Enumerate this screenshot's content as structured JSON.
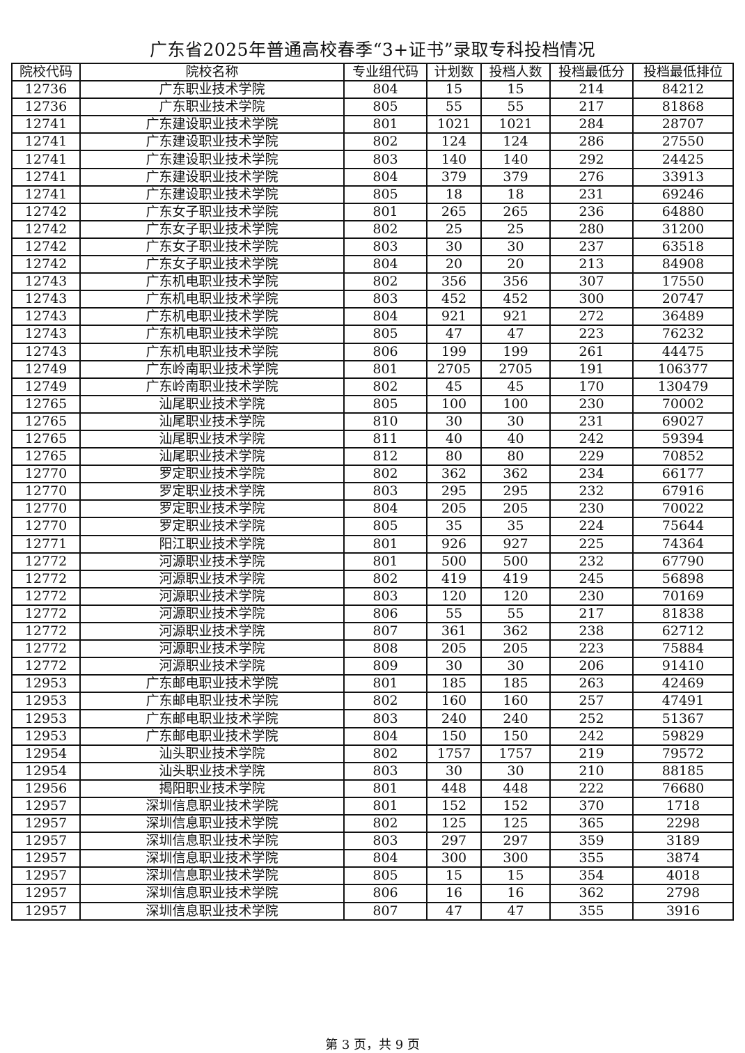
{
  "title": "广东省2025年普通高校春季“3+证书”录取专科投档情况",
  "columns": [
    "院校代码",
    "院校名称",
    "专业组代码",
    "计划数",
    "投档人数",
    "投档最低分",
    "投档最低排位"
  ],
  "rows": [
    [
      "12736",
      "广东职业技术学院",
      "804",
      "15",
      "15",
      "214",
      "84212"
    ],
    [
      "12736",
      "广东职业技术学院",
      "805",
      "55",
      "55",
      "217",
      "81868"
    ],
    [
      "12741",
      "广东建设职业技术学院",
      "801",
      "1021",
      "1021",
      "284",
      "28707"
    ],
    [
      "12741",
      "广东建设职业技术学院",
      "802",
      "124",
      "124",
      "286",
      "27550"
    ],
    [
      "12741",
      "广东建设职业技术学院",
      "803",
      "140",
      "140",
      "292",
      "24425"
    ],
    [
      "12741",
      "广东建设职业技术学院",
      "804",
      "379",
      "379",
      "276",
      "33913"
    ],
    [
      "12741",
      "广东建设职业技术学院",
      "805",
      "18",
      "18",
      "231",
      "69246"
    ],
    [
      "12742",
      "广东女子职业技术学院",
      "801",
      "265",
      "265",
      "236",
      "64880"
    ],
    [
      "12742",
      "广东女子职业技术学院",
      "802",
      "25",
      "25",
      "280",
      "31200"
    ],
    [
      "12742",
      "广东女子职业技术学院",
      "803",
      "30",
      "30",
      "237",
      "63518"
    ],
    [
      "12742",
      "广东女子职业技术学院",
      "804",
      "20",
      "20",
      "213",
      "84908"
    ],
    [
      "12743",
      "广东机电职业技术学院",
      "802",
      "356",
      "356",
      "307",
      "17550"
    ],
    [
      "12743",
      "广东机电职业技术学院",
      "803",
      "452",
      "452",
      "300",
      "20747"
    ],
    [
      "12743",
      "广东机电职业技术学院",
      "804",
      "921",
      "921",
      "272",
      "36489"
    ],
    [
      "12743",
      "广东机电职业技术学院",
      "805",
      "47",
      "47",
      "223",
      "76232"
    ],
    [
      "12743",
      "广东机电职业技术学院",
      "806",
      "199",
      "199",
      "261",
      "44475"
    ],
    [
      "12749",
      "广东岭南职业技术学院",
      "801",
      "2705",
      "2705",
      "191",
      "106377"
    ],
    [
      "12749",
      "广东岭南职业技术学院",
      "802",
      "45",
      "45",
      "170",
      "130479"
    ],
    [
      "12765",
      "汕尾职业技术学院",
      "805",
      "100",
      "100",
      "230",
      "70002"
    ],
    [
      "12765",
      "汕尾职业技术学院",
      "810",
      "30",
      "30",
      "231",
      "69027"
    ],
    [
      "12765",
      "汕尾职业技术学院",
      "811",
      "40",
      "40",
      "242",
      "59394"
    ],
    [
      "12765",
      "汕尾职业技术学院",
      "812",
      "80",
      "80",
      "229",
      "70852"
    ],
    [
      "12770",
      "罗定职业技术学院",
      "802",
      "362",
      "362",
      "234",
      "66177"
    ],
    [
      "12770",
      "罗定职业技术学院",
      "803",
      "295",
      "295",
      "232",
      "67916"
    ],
    [
      "12770",
      "罗定职业技术学院",
      "804",
      "205",
      "205",
      "230",
      "70022"
    ],
    [
      "12770",
      "罗定职业技术学院",
      "805",
      "35",
      "35",
      "224",
      "75644"
    ],
    [
      "12771",
      "阳江职业技术学院",
      "801",
      "926",
      "927",
      "225",
      "74364"
    ],
    [
      "12772",
      "河源职业技术学院",
      "801",
      "500",
      "500",
      "232",
      "67790"
    ],
    [
      "12772",
      "河源职业技术学院",
      "802",
      "419",
      "419",
      "245",
      "56898"
    ],
    [
      "12772",
      "河源职业技术学院",
      "803",
      "120",
      "120",
      "230",
      "70169"
    ],
    [
      "12772",
      "河源职业技术学院",
      "806",
      "55",
      "55",
      "217",
      "81838"
    ],
    [
      "12772",
      "河源职业技术学院",
      "807",
      "361",
      "362",
      "238",
      "62712"
    ],
    [
      "12772",
      "河源职业技术学院",
      "808",
      "205",
      "205",
      "223",
      "75884"
    ],
    [
      "12772",
      "河源职业技术学院",
      "809",
      "30",
      "30",
      "206",
      "91410"
    ],
    [
      "12953",
      "广东邮电职业技术学院",
      "801",
      "185",
      "185",
      "263",
      "42469"
    ],
    [
      "12953",
      "广东邮电职业技术学院",
      "802",
      "160",
      "160",
      "257",
      "47491"
    ],
    [
      "12953",
      "广东邮电职业技术学院",
      "803",
      "240",
      "240",
      "252",
      "51367"
    ],
    [
      "12953",
      "广东邮电职业技术学院",
      "804",
      "150",
      "150",
      "242",
      "59829"
    ],
    [
      "12954",
      "汕头职业技术学院",
      "802",
      "1757",
      "1757",
      "219",
      "79572"
    ],
    [
      "12954",
      "汕头职业技术学院",
      "803",
      "30",
      "30",
      "210",
      "88185"
    ],
    [
      "12956",
      "揭阳职业技术学院",
      "801",
      "448",
      "448",
      "222",
      "76680"
    ],
    [
      "12957",
      "深圳信息职业技术学院",
      "801",
      "152",
      "152",
      "370",
      "1718"
    ],
    [
      "12957",
      "深圳信息职业技术学院",
      "802",
      "125",
      "125",
      "365",
      "2298"
    ],
    [
      "12957",
      "深圳信息职业技术学院",
      "803",
      "297",
      "297",
      "359",
      "3189"
    ],
    [
      "12957",
      "深圳信息职业技术学院",
      "804",
      "300",
      "300",
      "355",
      "3874"
    ],
    [
      "12957",
      "深圳信息职业技术学院",
      "805",
      "15",
      "15",
      "354",
      "4018"
    ],
    [
      "12957",
      "深圳信息职业技术学院",
      "806",
      "16",
      "16",
      "362",
      "2798"
    ],
    [
      "12957",
      "深圳信息职业技术学院",
      "807",
      "47",
      "47",
      "355",
      "3916"
    ]
  ],
  "footer": "第 3 页，共 9 页"
}
